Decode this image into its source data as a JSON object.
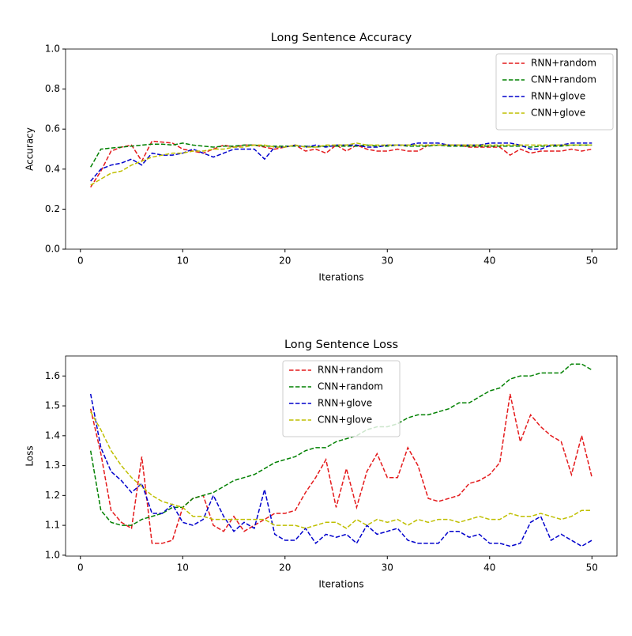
{
  "chart_data": [
    {
      "type": "line",
      "title": "Long Sentence Accuracy",
      "x_label": "Iterations",
      "y_label": "Accuracy",
      "x": [
        1,
        2,
        3,
        4,
        5,
        6,
        7,
        8,
        9,
        10,
        11,
        12,
        13,
        14,
        15,
        16,
        17,
        18,
        19,
        20,
        21,
        22,
        23,
        24,
        25,
        26,
        27,
        28,
        29,
        30,
        31,
        32,
        33,
        34,
        35,
        36,
        37,
        38,
        39,
        40,
        41,
        42,
        43,
        44,
        45,
        46,
        47,
        48,
        49,
        50
      ],
      "xlim": [
        -1.45,
        52.45
      ],
      "xticks": [
        0,
        10,
        20,
        30,
        40,
        50
      ],
      "ylim": [
        0,
        1
      ],
      "yticks": [
        {
          "value": 0,
          "label": "0.0"
        },
        {
          "value": 0.2,
          "label": "0.2"
        },
        {
          "value": 0.4,
          "label": "0.4"
        },
        {
          "value": 0.6,
          "label": "0.6"
        },
        {
          "value": 0.8,
          "label": "0.8"
        },
        {
          "value": 1,
          "label": "1.0"
        }
      ],
      "legend": "upper right",
      "linestyle": "dashed",
      "series": [
        {
          "name": "RNN+random",
          "color": "#e41a1c",
          "values": [
            0.31,
            0.39,
            0.49,
            0.51,
            0.52,
            0.44,
            0.54,
            0.535,
            0.53,
            0.5,
            0.49,
            0.48,
            0.5,
            0.52,
            0.51,
            0.52,
            0.52,
            0.51,
            0.5,
            0.51,
            0.52,
            0.49,
            0.5,
            0.48,
            0.52,
            0.49,
            0.52,
            0.5,
            0.49,
            0.49,
            0.5,
            0.49,
            0.49,
            0.52,
            0.52,
            0.52,
            0.52,
            0.51,
            0.51,
            0.51,
            0.51,
            0.47,
            0.5,
            0.48,
            0.49,
            0.49,
            0.49,
            0.5,
            0.49,
            0.5
          ]
        },
        {
          "name": "CNN+random",
          "color": "#008000",
          "values": [
            0.41,
            0.5,
            0.505,
            0.51,
            0.515,
            0.52,
            0.525,
            0.525,
            0.52,
            0.53,
            0.52,
            0.515,
            0.51,
            0.515,
            0.515,
            0.52,
            0.52,
            0.515,
            0.515,
            0.515,
            0.515,
            0.515,
            0.51,
            0.515,
            0.515,
            0.515,
            0.515,
            0.52,
            0.515,
            0.515,
            0.52,
            0.515,
            0.515,
            0.515,
            0.52,
            0.515,
            0.515,
            0.515,
            0.515,
            0.515,
            0.515,
            0.515,
            0.515,
            0.51,
            0.515,
            0.515,
            0.515,
            0.52,
            0.52,
            0.52
          ]
        },
        {
          "name": "RNN+glove",
          "color": "#0000cc",
          "values": [
            0.34,
            0.4,
            0.42,
            0.43,
            0.45,
            0.42,
            0.48,
            0.47,
            0.47,
            0.48,
            0.5,
            0.48,
            0.46,
            0.48,
            0.5,
            0.5,
            0.5,
            0.45,
            0.51,
            0.51,
            0.52,
            0.51,
            0.52,
            0.51,
            0.52,
            0.52,
            0.52,
            0.51,
            0.51,
            0.52,
            0.52,
            0.52,
            0.53,
            0.53,
            0.53,
            0.52,
            0.52,
            0.52,
            0.52,
            0.53,
            0.53,
            0.53,
            0.52,
            0.5,
            0.5,
            0.52,
            0.52,
            0.53,
            0.53,
            0.53
          ]
        },
        {
          "name": "CNN+glove",
          "color": "#bfbf00",
          "values": [
            0.32,
            0.35,
            0.38,
            0.39,
            0.42,
            0.44,
            0.46,
            0.47,
            0.48,
            0.48,
            0.49,
            0.49,
            0.5,
            0.5,
            0.51,
            0.51,
            0.52,
            0.52,
            0.51,
            0.51,
            0.52,
            0.51,
            0.51,
            0.52,
            0.52,
            0.52,
            0.53,
            0.52,
            0.52,
            0.52,
            0.52,
            0.52,
            0.52,
            0.52,
            0.52,
            0.52,
            0.52,
            0.52,
            0.52,
            0.52,
            0.52,
            0.52,
            0.52,
            0.52,
            0.52,
            0.52,
            0.52,
            0.52,
            0.52,
            0.52
          ]
        }
      ]
    },
    {
      "type": "line",
      "title": "Long Sentence Loss",
      "x_label": "Iterations",
      "y_label": "Loss",
      "x": [
        1,
        2,
        3,
        4,
        5,
        6,
        7,
        8,
        9,
        10,
        11,
        12,
        13,
        14,
        15,
        16,
        17,
        18,
        19,
        20,
        21,
        22,
        23,
        24,
        25,
        26,
        27,
        28,
        29,
        30,
        31,
        32,
        33,
        34,
        35,
        36,
        37,
        38,
        39,
        40,
        41,
        42,
        43,
        44,
        45,
        46,
        47,
        48,
        49,
        50
      ],
      "xlim": [
        -1.45,
        52.45
      ],
      "xticks": [
        0,
        10,
        20,
        30,
        40,
        50
      ],
      "ylim": [
        0.997,
        1.667
      ],
      "yticks": [
        {
          "value": 1,
          "label": "1.0"
        },
        {
          "value": 1.1,
          "label": "1.1"
        },
        {
          "value": 1.2,
          "label": "1.2"
        },
        {
          "value": 1.3,
          "label": "1.3"
        },
        {
          "value": 1.4,
          "label": "1.4"
        },
        {
          "value": 1.5,
          "label": "1.5"
        },
        {
          "value": 1.6,
          "label": "1.6"
        }
      ],
      "legend": "upper center",
      "linestyle": "dashed",
      "series": [
        {
          "name": "RNN+random",
          "color": "#e41a1c",
          "values": [
            1.49,
            1.34,
            1.15,
            1.11,
            1.09,
            1.33,
            1.04,
            1.04,
            1.05,
            1.16,
            1.19,
            1.2,
            1.1,
            1.08,
            1.13,
            1.08,
            1.1,
            1.12,
            1.14,
            1.14,
            1.15,
            1.21,
            1.26,
            1.32,
            1.16,
            1.29,
            1.16,
            1.28,
            1.34,
            1.26,
            1.26,
            1.36,
            1.3,
            1.19,
            1.18,
            1.19,
            1.2,
            1.24,
            1.25,
            1.27,
            1.31,
            1.54,
            1.38,
            1.47,
            1.43,
            1.4,
            1.38,
            1.27,
            1.4,
            1.26
          ]
        },
        {
          "name": "CNN+random",
          "color": "#008000",
          "values": [
            1.35,
            1.15,
            1.11,
            1.1,
            1.1,
            1.12,
            1.13,
            1.14,
            1.16,
            1.16,
            1.19,
            1.2,
            1.21,
            1.23,
            1.25,
            1.26,
            1.27,
            1.29,
            1.31,
            1.32,
            1.33,
            1.35,
            1.36,
            1.36,
            1.38,
            1.39,
            1.4,
            1.42,
            1.43,
            1.43,
            1.44,
            1.46,
            1.47,
            1.47,
            1.48,
            1.49,
            1.51,
            1.51,
            1.53,
            1.55,
            1.56,
            1.59,
            1.6,
            1.6,
            1.61,
            1.61,
            1.61,
            1.64,
            1.64,
            1.62
          ]
        },
        {
          "name": "RNN+glove",
          "color": "#0000cc",
          "values": [
            1.54,
            1.36,
            1.28,
            1.25,
            1.21,
            1.24,
            1.14,
            1.14,
            1.17,
            1.11,
            1.1,
            1.12,
            1.2,
            1.13,
            1.08,
            1.11,
            1.09,
            1.22,
            1.07,
            1.05,
            1.05,
            1.09,
            1.04,
            1.07,
            1.06,
            1.07,
            1.04,
            1.1,
            1.07,
            1.08,
            1.09,
            1.05,
            1.04,
            1.04,
            1.04,
            1.08,
            1.08,
            1.06,
            1.07,
            1.04,
            1.04,
            1.03,
            1.04,
            1.11,
            1.13,
            1.05,
            1.07,
            1.05,
            1.03,
            1.05
          ]
        },
        {
          "name": "CNN+glove",
          "color": "#bfbf00",
          "values": [
            1.48,
            1.42,
            1.35,
            1.3,
            1.26,
            1.23,
            1.2,
            1.18,
            1.17,
            1.16,
            1.13,
            1.13,
            1.12,
            1.12,
            1.12,
            1.12,
            1.12,
            1.12,
            1.1,
            1.1,
            1.1,
            1.09,
            1.1,
            1.11,
            1.11,
            1.09,
            1.12,
            1.1,
            1.12,
            1.11,
            1.12,
            1.1,
            1.12,
            1.11,
            1.12,
            1.12,
            1.11,
            1.12,
            1.13,
            1.12,
            1.12,
            1.14,
            1.13,
            1.13,
            1.14,
            1.13,
            1.12,
            1.13,
            1.15,
            1.15
          ]
        }
      ]
    }
  ]
}
